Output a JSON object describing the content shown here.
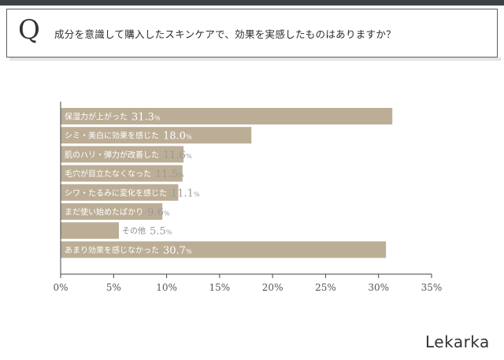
{
  "header": {
    "q_mark": "Q",
    "question": "成分を意識して購入したスキンケアで、効果を実感したものはありますか？"
  },
  "brand": {
    "logo_text": "Lekarka"
  },
  "colors": {
    "bar": "#bcae96",
    "axis": "#444444",
    "text_dark": "#8a8a8a"
  },
  "chart_data": {
    "type": "bar",
    "orientation": "horizontal",
    "categories": [
      "保湿力が上がった",
      "シミ・美白に効果を感じた",
      "肌のハリ・弾力が改善した",
      "毛穴が目立たなくなった",
      "シワ・たるみに変化を感じた",
      "まだ使い始めたばかり",
      "その他",
      "あまり効果を感じなかった"
    ],
    "values": [
      31.3,
      18.0,
      11.6,
      11.5,
      11.1,
      9.6,
      5.5,
      30.7
    ],
    "value_labels": [
      "31.3",
      "18.0",
      "11.6",
      "11.5",
      "11.1",
      "9.6",
      "5.5",
      "30.7"
    ],
    "unit": "%",
    "xlim": [
      0,
      35
    ],
    "xticks": [
      0,
      5,
      10,
      15,
      20,
      25,
      30,
      35
    ],
    "xtick_labels": [
      "0%",
      "5%",
      "10%",
      "15%",
      "20%",
      "25%",
      "30%",
      "35%"
    ],
    "title": "",
    "xlabel": "",
    "ylabel": "",
    "grid": false
  }
}
